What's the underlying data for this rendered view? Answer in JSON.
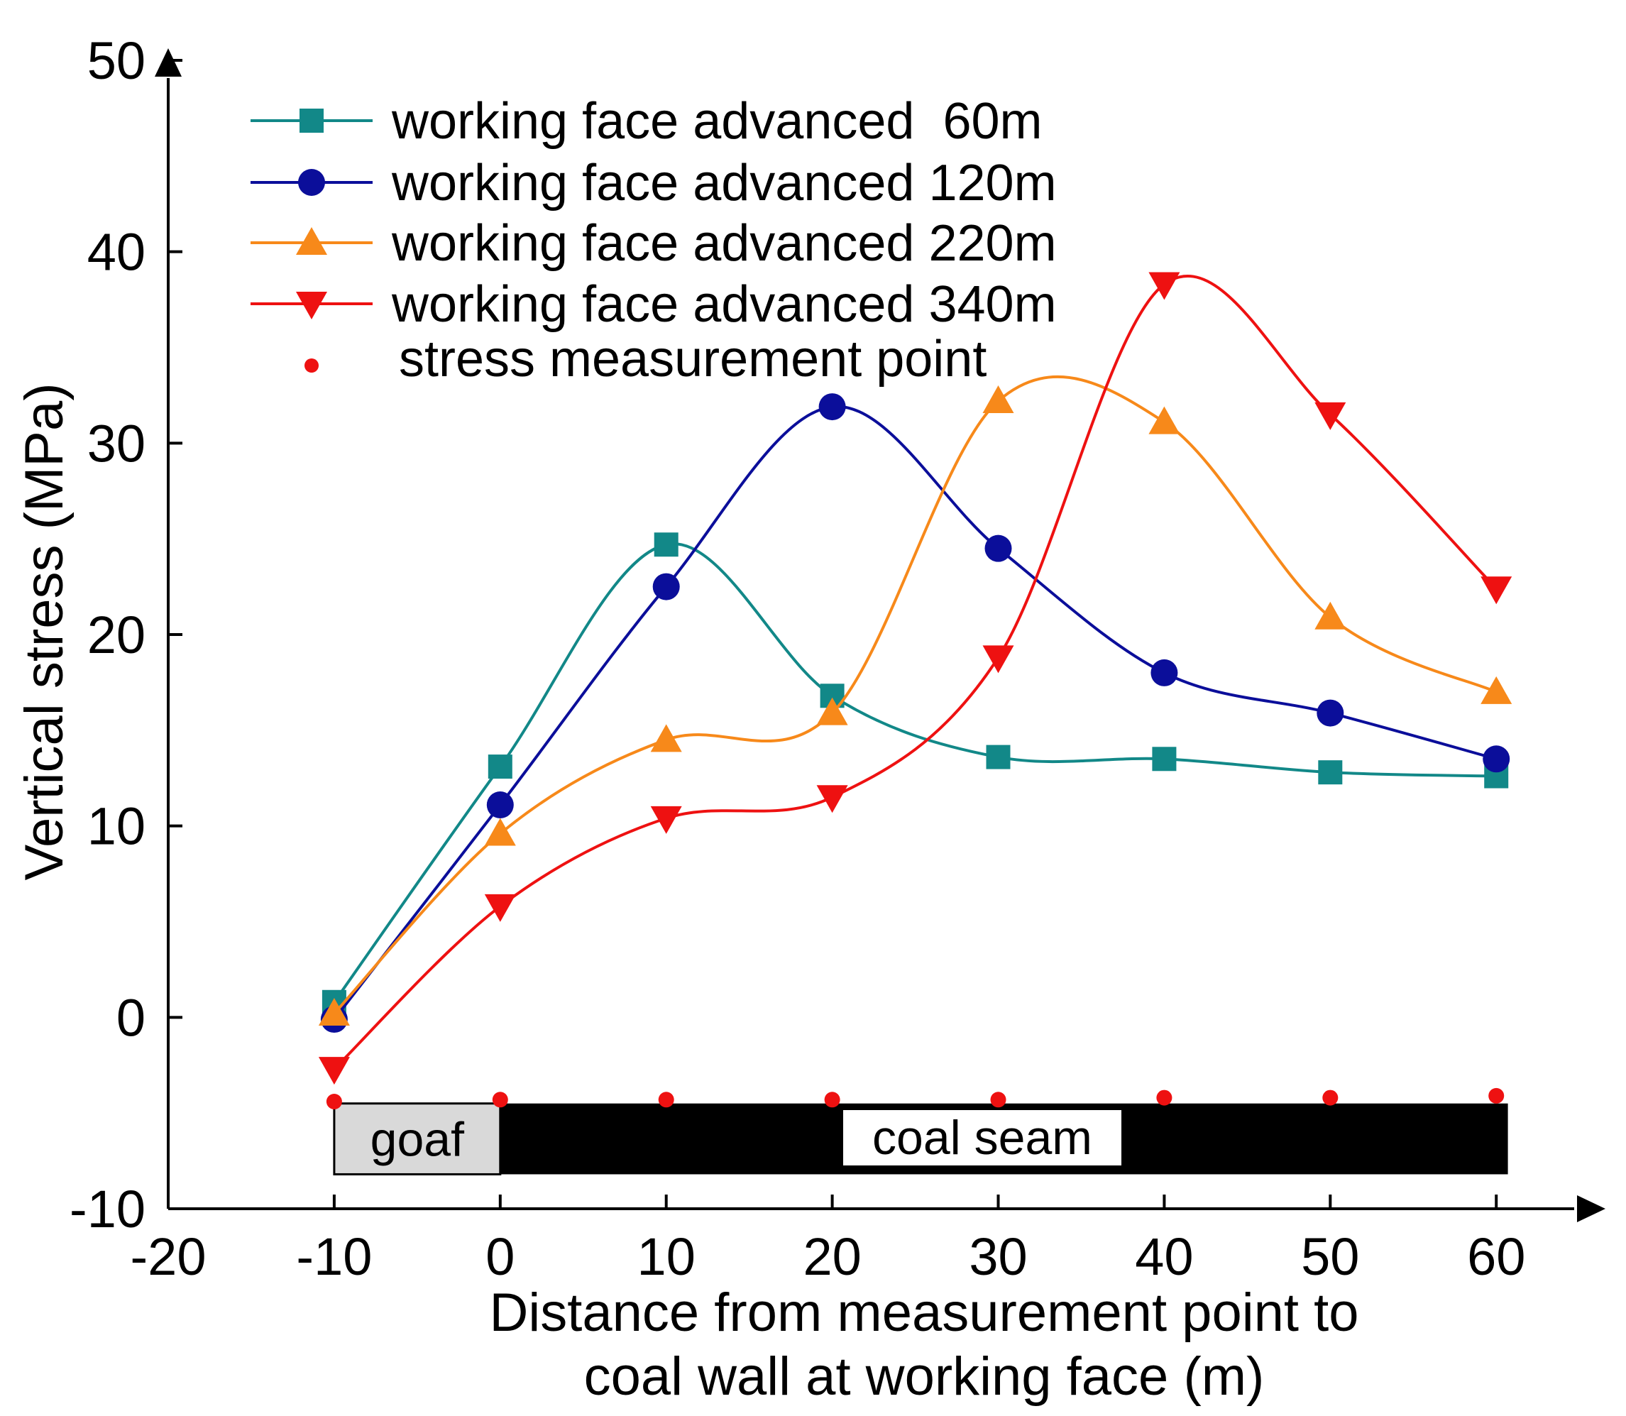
{
  "chart_data": {
    "type": "line",
    "title": "",
    "xlabel_lines": [
      "Distance from measurement point to",
      "coal wall at working face (m)"
    ],
    "ylabel": "Vertical stress (MPa)",
    "xlim": [
      -20,
      62
    ],
    "ylim": [
      -10,
      50
    ],
    "xticks": [
      "-20",
      "-10",
      "0",
      "10",
      "20",
      "30",
      "40",
      "50",
      "60"
    ],
    "yticks": [
      "-10",
      "0",
      "10",
      "20",
      "30",
      "40",
      "50"
    ],
    "x": [
      -10,
      0,
      10,
      20,
      30,
      40,
      50,
      60
    ],
    "series": [
      {
        "name": "working face advanced  60m",
        "color": "#128888",
        "marker": "square",
        "values": [
          0.8,
          13.1,
          24.7,
          16.8,
          13.6,
          13.5,
          12.8,
          12.6
        ]
      },
      {
        "name": "working face advanced 120m",
        "color": "#0b0e9a",
        "marker": "circle",
        "values": [
          -0.1,
          11.1,
          22.5,
          31.9,
          24.5,
          18.0,
          15.9,
          13.5
        ]
      },
      {
        "name": "working face advanced 220m",
        "color": "#f7891a",
        "marker": "triangle-up",
        "values": [
          0.2,
          9.6,
          14.5,
          15.9,
          32.2,
          31.1,
          20.9,
          17.0
        ]
      },
      {
        "name": "working face advanced 340m",
        "color": "#ee1111",
        "marker": "triangle-down",
        "values": [
          -2.7,
          5.8,
          10.4,
          11.5,
          18.8,
          38.3,
          31.5,
          22.4
        ]
      }
    ],
    "measurement_points": {
      "name": "stress measurement point",
      "color": "#ee1111",
      "x": [
        -10,
        0,
        10,
        20,
        30,
        40,
        50,
        60
      ],
      "y": [
        -4.4,
        -4.3,
        -4.3,
        -4.3,
        -4.3,
        -4.2,
        -4.2,
        -4.1
      ]
    },
    "strata": {
      "goaf_label": "goaf",
      "goaf_range": [
        -10,
        0
      ],
      "coal_label": "coal seam",
      "coal_range": [
        0,
        60.7
      ],
      "y_range": [
        -8.2,
        -4.5
      ]
    },
    "legend_position": "top-left"
  }
}
